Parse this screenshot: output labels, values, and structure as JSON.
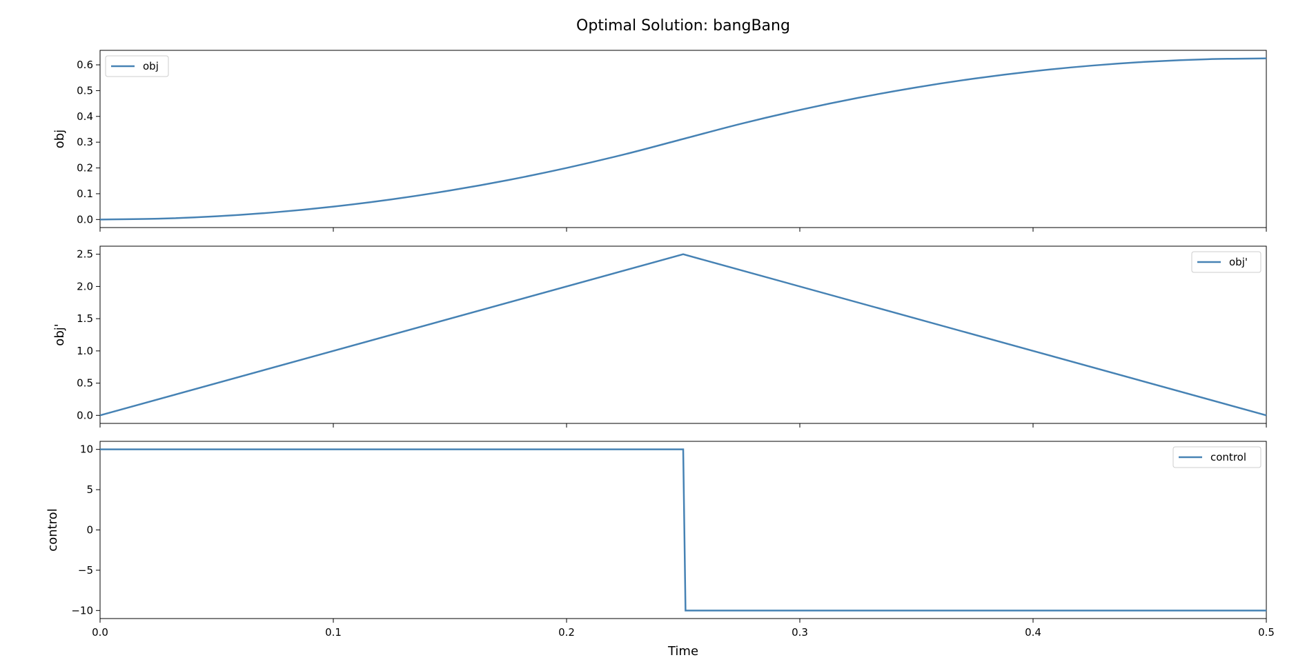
{
  "chart_data": {
    "type": "line",
    "title": "Optimal Solution: bangBang",
    "shared_x": true,
    "xlabel": "Time",
    "xlim": [
      0,
      0.5
    ],
    "xticks": [
      0,
      0.1,
      0.2,
      0.3,
      0.4,
      0.5
    ],
    "xtick_labels": [
      "0.0",
      "0.1",
      "0.2",
      "0.3",
      "0.4",
      "0.5"
    ],
    "line_color": "#4682b4",
    "subplots": [
      {
        "ylabel": "obj",
        "ylim": [
          -0.03125,
          0.65625
        ],
        "yticks": [
          0,
          0.1,
          0.2,
          0.3,
          0.4,
          0.5,
          0.6
        ],
        "ytick_labels": [
          "0.0",
          "0.1",
          "0.2",
          "0.3",
          "0.4",
          "0.5",
          "0.6"
        ],
        "legend_position": "upper-left",
        "series": [
          {
            "name": "obj",
            "x": [
              0,
              0.025,
              0.05,
              0.075,
              0.1,
              0.125,
              0.15,
              0.175,
              0.2,
              0.225,
              0.25,
              0.275,
              0.3,
              0.325,
              0.35,
              0.375,
              0.4,
              0.425,
              0.45,
              0.475,
              0.5
            ],
            "y": [
              0,
              0.0031,
              0.0125,
              0.0281,
              0.05,
              0.0781,
              0.1125,
              0.1531,
              0.2,
              0.2531,
              0.3125,
              0.3719,
              0.425,
              0.4719,
              0.5125,
              0.5469,
              0.575,
              0.5969,
              0.6125,
              0.6219,
              0.625
            ]
          }
        ]
      },
      {
        "ylabel": "obj'",
        "ylim": [
          -0.125,
          2.625
        ],
        "yticks": [
          0,
          0.5,
          1,
          1.5,
          2,
          2.5
        ],
        "ytick_labels": [
          "0.0",
          "0.5",
          "1.0",
          "1.5",
          "2.0",
          "2.5"
        ],
        "legend_position": "upper-right",
        "series": [
          {
            "name": "obj'",
            "x": [
              0,
              0.25,
              0.5
            ],
            "y": [
              0,
              2.5,
              0
            ]
          }
        ]
      },
      {
        "ylabel": "control",
        "ylim": [
          -11,
          11
        ],
        "yticks": [
          -10,
          -5,
          0,
          5,
          10
        ],
        "ytick_labels": [
          "−10",
          "−5",
          "0",
          "5",
          "10"
        ],
        "legend_position": "upper-right",
        "series": [
          {
            "name": "control",
            "x": [
              0,
              0.25,
              0.251,
              0.5
            ],
            "y": [
              10,
              10,
              -10,
              -10
            ]
          }
        ]
      }
    ]
  }
}
